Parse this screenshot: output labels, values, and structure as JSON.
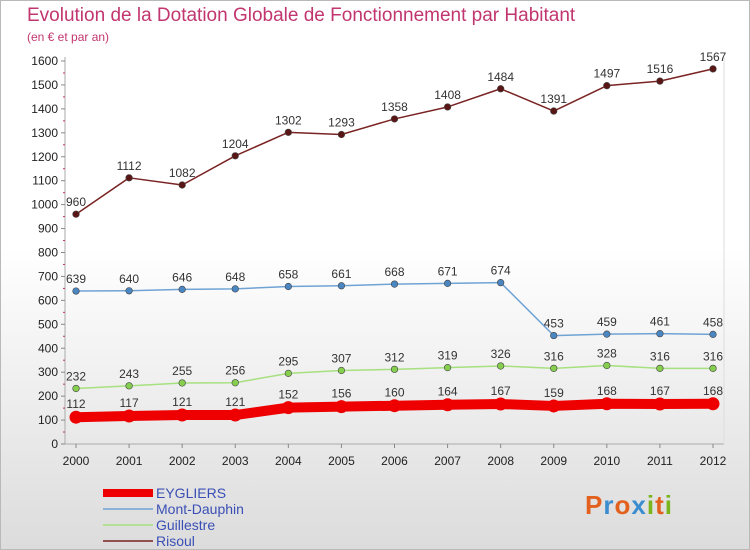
{
  "title": "Evolution de la Dotation Globale de Fonctionnement par Habitant",
  "subtitle": "(en € et par an)",
  "logo": {
    "letters": [
      "P",
      "r",
      "o",
      "x",
      "i",
      "t",
      "i"
    ],
    "colors": [
      "#e2611e",
      "#3b8dd0",
      "#e2611e",
      "#3b8dd0",
      "#7ab51d",
      "#e2611e",
      "#7ab51d"
    ]
  },
  "chart_data": {
    "type": "line",
    "x": [
      "2000",
      "2001",
      "2002",
      "2003",
      "2004",
      "2005",
      "2006",
      "2007",
      "2008",
      "2009",
      "2010",
      "2011",
      "2012"
    ],
    "ylim": [
      0,
      1600
    ],
    "yticks": [
      "0",
      "100",
      "200",
      "300",
      "400",
      "500",
      "600",
      "700",
      "800",
      "900",
      "1000",
      "1100",
      "1200",
      "1300",
      "1400",
      "1500",
      "1600"
    ],
    "grid": false,
    "legend_position": "bottom-left",
    "series": [
      {
        "name": "Risoul",
        "color": "#7a2323",
        "marker": "#5a1515",
        "values": [
          960,
          1112,
          1082,
          1204,
          1302,
          1293,
          1358,
          1408,
          1484,
          1391,
          1497,
          1516,
          1567
        ],
        "labels": [
          "960",
          "1112",
          "1082",
          "1204",
          "1302",
          "1293",
          "1358",
          "1408",
          "1484",
          "1391",
          "1497",
          "1516",
          "1567"
        ]
      },
      {
        "name": "Mont-Dauphin",
        "color": "#6fa3d4",
        "marker": "#4a86c2",
        "values": [
          639,
          640,
          646,
          648,
          658,
          661,
          668,
          671,
          674,
          453,
          459,
          461,
          458
        ],
        "labels": [
          "639",
          "640",
          "646",
          "648",
          "658",
          "661",
          "668",
          "671",
          "674",
          "453",
          "459",
          "461",
          "458"
        ]
      },
      {
        "name": "Guillestre",
        "color": "#a6e07f",
        "marker": "#86cf4e",
        "values": [
          232,
          243,
          255,
          256,
          295,
          307,
          312,
          319,
          326,
          316,
          328,
          316,
          316
        ],
        "labels": [
          "232",
          "243",
          "255",
          "256",
          "295",
          "307",
          "312",
          "319",
          "326",
          "316",
          "328",
          "316",
          "316"
        ]
      },
      {
        "name": "EYGLIERS",
        "color": "#ee0000",
        "marker": "#ee0000",
        "values": [
          112,
          117,
          121,
          121,
          152,
          156,
          160,
          164,
          167,
          159,
          168,
          167,
          168
        ],
        "labels": [
          "112",
          "117",
          "121",
          "121",
          "152",
          "156",
          "160",
          "164",
          "167",
          "159",
          "168",
          "167",
          "168"
        ]
      }
    ],
    "legend_order": [
      "EYGLIERS",
      "Mont-Dauphin",
      "Guillestre",
      "Risoul"
    ]
  }
}
